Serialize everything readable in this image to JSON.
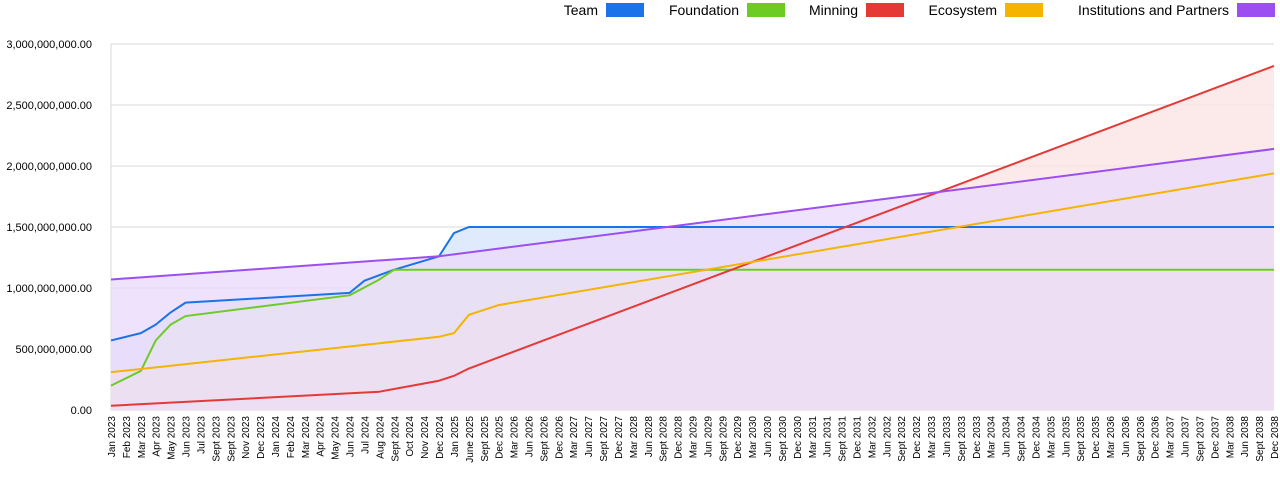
{
  "chart_data": {
    "type": "area",
    "title": "",
    "xlabel": "",
    "ylabel": "",
    "ylim": [
      0,
      3000000000
    ],
    "y_ticks": [
      "0.00",
      "500,000,000.00",
      "1,000,000,000.00",
      "1,500,000,000.00",
      "2,000,000,000.00",
      "2,500,000,000.00",
      "3,000,000,000.00"
    ],
    "grid": true,
    "legend_position": "top-right",
    "x_tick_labels": [
      "Jan 2023",
      "Feb 2023",
      "Mar 2023",
      "Apr 2023",
      "May 2023",
      "Jun 2023",
      "Jul 2023",
      "Sept 2023",
      "Sept 2023",
      "Nov 2023",
      "Dec 2023",
      "Jan 2024",
      "Feb 2024",
      "Mar 2024",
      "Apr 2024",
      "May 2024",
      "Jun 2024",
      "Jul 2024",
      "Aug 2024",
      "Sept 2024",
      "Oct 2024",
      "Nov 2024",
      "Dec 2024",
      "Jan 2025",
      "June 2025",
      "Sept 2025",
      "Dec 2025",
      "Mar 2026",
      "Jun 2026",
      "Sept 2026",
      "Dec 2026",
      "Mar 2027",
      "Jun 2027",
      "Sept 2027",
      "Dec 2027",
      "Mar 2028",
      "Jun 2028",
      "Sept 2028",
      "Dec 2028",
      "Mar 2029",
      "Jun 2029",
      "Sept 2029",
      "Dec 2029",
      "Mar 2030",
      "Jun 2030",
      "Sept 2030",
      "Dec 2030",
      "Mar 2031",
      "Jun 2031",
      "Sept 2031",
      "Dec 2031",
      "Mar 2032",
      "Jun 2032",
      "Sept 2032",
      "Dec 2032",
      "Mar 2033",
      "Jun 2033",
      "Sept 2033",
      "Dec 2033",
      "Mar 2034",
      "Jun 2034",
      "Sept 2034",
      "Dec 2034",
      "Mar 2035",
      "Jun 2035",
      "Sept 2035",
      "Dec 2035",
      "Mar 2036",
      "Jun 2036",
      "Sept 2036",
      "Dec 2036",
      "Mar 2037",
      "Jun 2037",
      "Sept 2037",
      "Dec 2037",
      "Mar 2038",
      "Jun 2038",
      "Sept 2038",
      "Dec 2038"
    ],
    "series": [
      {
        "name": "Team",
        "color": "#1a73e8",
        "fill": "#d7e6fb",
        "x": [
          "Jan 2023",
          "Mar 2023",
          "Apr 2023",
          "May 2023",
          "Jun 2023",
          "Jun 2024",
          "Jul 2024",
          "Sept 2024",
          "Dec 2024",
          "Jan 2025",
          "June 2025",
          "Dec 2038"
        ],
        "values": [
          570000000,
          630000000,
          700000000,
          800000000,
          880000000,
          960000000,
          1060000000,
          1150000000,
          1260000000,
          1450000000,
          1500000000,
          1500000000
        ]
      },
      {
        "name": "Foundation",
        "color": "#6dcc24",
        "fill": "#e2f5d2",
        "x": [
          "Jan 2023",
          "Mar 2023",
          "Apr 2023",
          "May 2023",
          "Jun 2023",
          "Jun 2024",
          "Aug 2024",
          "Sept 2024",
          "Dec 2038"
        ],
        "values": [
          200000000,
          320000000,
          570000000,
          700000000,
          770000000,
          940000000,
          1070000000,
          1150000000,
          1150000000
        ]
      },
      {
        "name": "Minning",
        "color": "#e53935",
        "fill": "#fbe5e5",
        "x": [
          "Jan 2023",
          "Aug 2024",
          "Dec 2024",
          "Jan 2025",
          "June 2025",
          "Dec 2038"
        ],
        "values": [
          35000000,
          150000000,
          240000000,
          280000000,
          340000000,
          2820000000
        ]
      },
      {
        "name": "Ecosystem",
        "color": "#f4b400",
        "fill": "#fcecc9",
        "x": [
          "Jan 2023",
          "Dec 2024",
          "Jan 2025",
          "June 2025",
          "Dec 2025",
          "Dec 2038"
        ],
        "values": [
          310000000,
          600000000,
          630000000,
          780000000,
          860000000,
          1940000000
        ]
      },
      {
        "name": "Institutions and Partners",
        "color": "#9c4ef0",
        "fill": "#eadbfb",
        "x": [
          "Jan 2023",
          "Dec 2024",
          "Dec 2038"
        ],
        "values": [
          1070000000,
          1260000000,
          2140000000
        ]
      }
    ]
  }
}
